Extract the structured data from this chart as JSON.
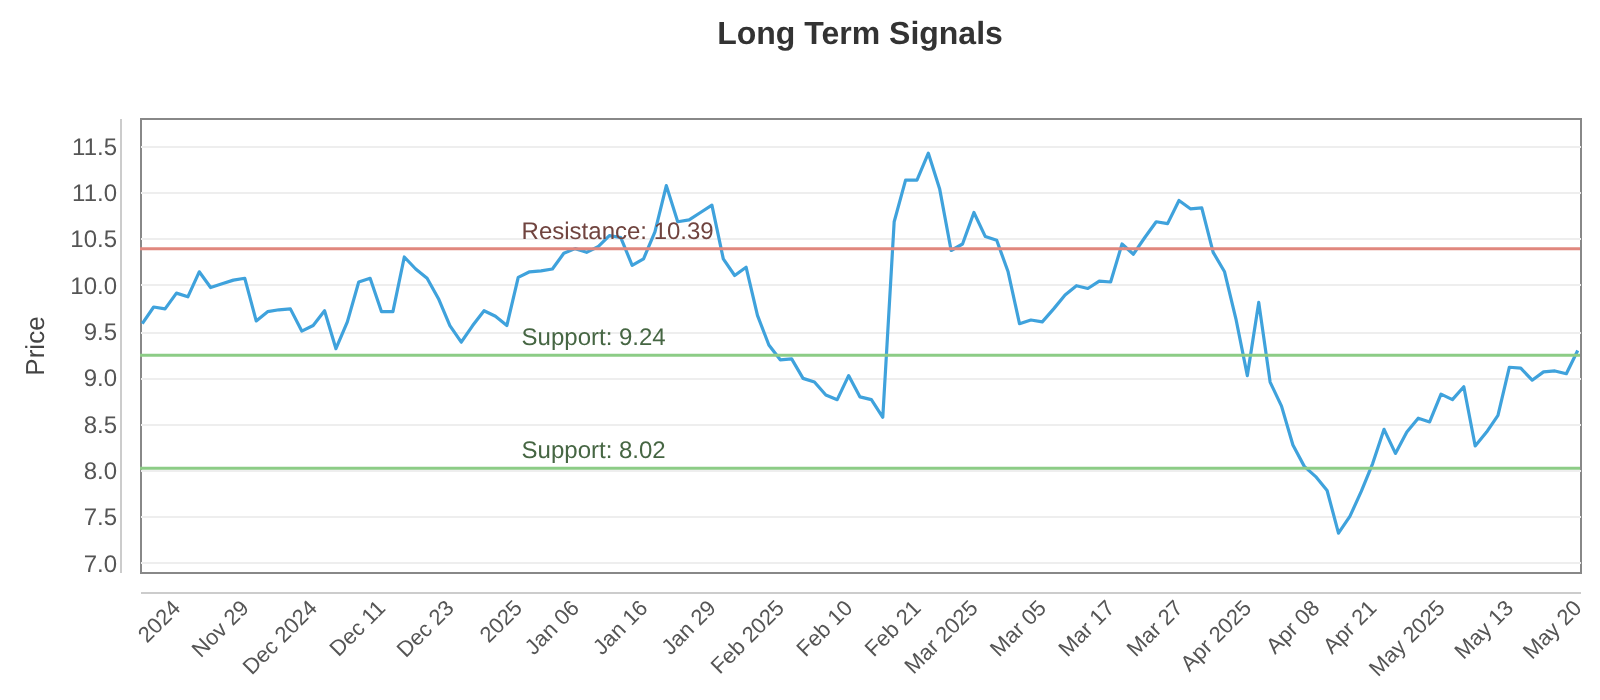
{
  "chart_data": {
    "type": "line",
    "title": "Long Term Signals",
    "ylabel": "Price",
    "categories": [
      null,
      null,
      null,
      "2024",
      null,
      null,
      null,
      null,
      null,
      "Nov 29",
      null,
      null,
      null,
      null,
      null,
      "Dec 2024",
      null,
      null,
      null,
      null,
      null,
      "Dec 11",
      null,
      null,
      null,
      null,
      null,
      "Dec 23",
      null,
      null,
      null,
      null,
      null,
      "2025",
      null,
      null,
      null,
      null,
      "Jan 06",
      null,
      null,
      null,
      null,
      null,
      "Jan 16",
      null,
      null,
      null,
      null,
      null,
      "Jan 29",
      null,
      null,
      null,
      null,
      null,
      "Feb 2025",
      null,
      null,
      null,
      null,
      null,
      "Feb 10",
      null,
      null,
      null,
      null,
      null,
      "Feb 21",
      null,
      null,
      null,
      null,
      "Mar 2025",
      null,
      null,
      null,
      null,
      null,
      "Mar 05",
      null,
      null,
      null,
      null,
      null,
      "Mar 17",
      null,
      null,
      null,
      null,
      null,
      "Mar 27",
      null,
      null,
      null,
      null,
      null,
      "Apr 2025",
      null,
      null,
      null,
      null,
      null,
      "Apr 08",
      null,
      null,
      null,
      null,
      "Apr 21",
      null,
      null,
      null,
      null,
      null,
      "May 2025",
      null,
      null,
      null,
      null,
      null,
      "May 13",
      null,
      null,
      null,
      null,
      null,
      "May 20"
    ],
    "series": [
      {
        "color": "#3fa2dc",
        "values": [
          9.58,
          9.76,
          9.74,
          9.91,
          9.87,
          10.14,
          9.97,
          10.01,
          10.05,
          10.07,
          9.61,
          9.71,
          9.73,
          9.74,
          9.5,
          9.56,
          9.72,
          9.31,
          9.6,
          10.03,
          10.07,
          9.71,
          9.71,
          10.3,
          10.17,
          10.07,
          9.85,
          9.56,
          9.38,
          9.56,
          9.72,
          9.66,
          9.56,
          10.08,
          10.14,
          10.15,
          10.17,
          10.34,
          10.39,
          10.35,
          10.41,
          10.53,
          10.51,
          10.21,
          10.28,
          10.57,
          11.07,
          10.68,
          10.7,
          10.78,
          10.86,
          10.28,
          10.1,
          10.19,
          9.67,
          9.35,
          9.19,
          9.2,
          8.99,
          8.95,
          8.81,
          8.76,
          9.02,
          8.79,
          8.76,
          8.57,
          10.68,
          11.13,
          11.13,
          11.42,
          11.03,
          10.37,
          10.44,
          10.78,
          10.52,
          10.48,
          10.14,
          9.58,
          9.62,
          9.6,
          9.74,
          9.89,
          9.99,
          9.96,
          10.04,
          10.03,
          10.44,
          10.33,
          10.51,
          10.68,
          10.66,
          10.91,
          10.82,
          10.83,
          10.35,
          10.14,
          9.63,
          9.02,
          9.81,
          8.95,
          8.69,
          8.27,
          8.04,
          7.93,
          7.78,
          7.32,
          7.5,
          7.77,
          8.07,
          8.44,
          8.18,
          8.41,
          8.56,
          8.52,
          8.82,
          8.76,
          8.9,
          8.26,
          8.41,
          8.59,
          9.11,
          9.1,
          8.97,
          9.06,
          9.07,
          9.04,
          9.29
        ]
      }
    ],
    "ylim": [
      6.9,
      11.8
    ],
    "yticks": [
      {
        "value": 7,
        "label": "7.0"
      },
      7.5,
      {
        "value": 8,
        "label": "8.0"
      },
      8.5,
      {
        "value": 9,
        "label": "9.0"
      },
      9.5,
      {
        "value": 10,
        "label": "10.0"
      },
      10.5,
      {
        "value": 11,
        "label": "11.0"
      },
      11.5
    ],
    "ref_lines": [
      {
        "axis": "y",
        "value": 10.39,
        "label": "Resistance: 10.39",
        "color": "#e0877e"
      },
      {
        "axis": "y",
        "value": 9.24,
        "label": "Support: 9.24",
        "color": "#8ccc86"
      },
      {
        "axis": "y",
        "value": 8.02,
        "label": "Support: 8.02",
        "color": "#8ccc86"
      }
    ],
    "grid": "y",
    "marker": "none",
    "line_style": "solid"
  }
}
